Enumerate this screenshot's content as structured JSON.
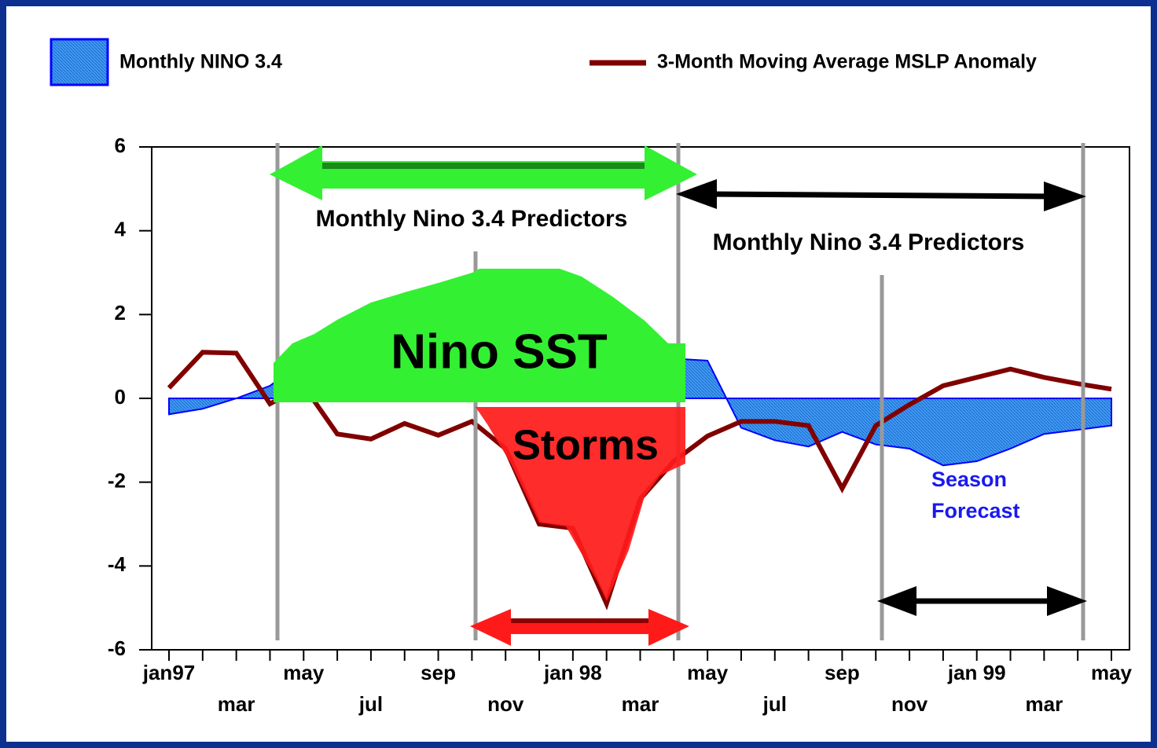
{
  "chart_data": {
    "type": "combo",
    "legend": "top",
    "categories": [
      "jan97",
      null,
      "mar",
      null,
      "may",
      null,
      "jul",
      null,
      "sep",
      null,
      "nov",
      null,
      "jan 98",
      null,
      "mar",
      null,
      "may",
      null,
      "jul",
      null,
      "sep",
      null,
      "nov",
      null,
      "jan 99",
      null,
      "mar",
      null,
      "may"
    ],
    "series": [
      {
        "name": "Monthly NINO 3.4",
        "type": "area",
        "color": "#3399ff",
        "values": [
          -0.38,
          -0.25,
          0.0,
          0.3,
          0.9,
          1.5,
          2.0,
          2.3,
          2.6,
          2.8,
          3.0,
          2.9,
          2.6,
          2.2,
          1.6,
          0.95,
          0.9,
          -0.7,
          -1.0,
          -1.15,
          -0.8,
          -1.1,
          -1.2,
          -1.6,
          -1.5,
          -1.2,
          -0.85,
          -0.75,
          -0.65
        ]
      },
      {
        "name": "3-Month Moving Average MSLP Anomaly",
        "type": "line",
        "color": "#800000",
        "values": [
          0.25,
          1.1,
          1.08,
          -0.13,
          0.3,
          -0.85,
          -0.97,
          -0.6,
          -0.88,
          -0.55,
          -1.2,
          -3.0,
          -3.1,
          -4.9,
          -2.4,
          -1.5,
          -0.9,
          -0.55,
          -0.55,
          -0.65,
          -2.15,
          -0.65,
          -0.15,
          0.3,
          0.5,
          0.7,
          0.5,
          0.35,
          0.22
        ]
      }
    ],
    "ylim": [
      -6,
      6
    ],
    "yticks": [
      -6,
      -4,
      -2,
      0,
      2,
      4,
      6
    ],
    "annotations": [
      "Monthly Nino 3.4 Predictors",
      "Monthly Nino 3.4 Predictors",
      "Nino SST",
      "Storms",
      "Season Forecast"
    ]
  }
}
